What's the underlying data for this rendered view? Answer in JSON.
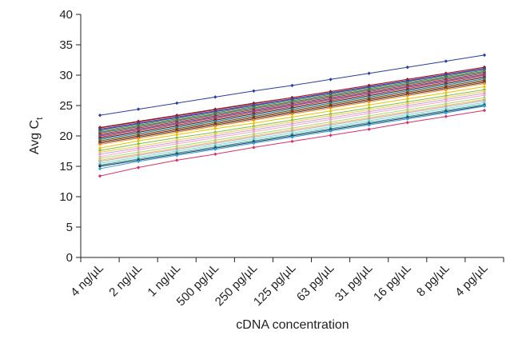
{
  "chart_data": {
    "type": "line",
    "xlabel": "cDNA concentration",
    "ylabel_main": "Avg C",
    "ylabel_sub": "t",
    "ylim": [
      0,
      40
    ],
    "y_ticks": [
      "0",
      "5",
      "10",
      "15",
      "20",
      "25",
      "30",
      "35",
      "40"
    ],
    "categories": [
      "4 ng/µL",
      "2 ng/µL",
      "1 ng/µL",
      "500 pg/µL",
      "250 pg/µL",
      "125 pg/µL",
      "63 pg/µL",
      "31 pg/µL",
      "16 pg/µL",
      "8 pg/µL",
      "4 pg/µL"
    ],
    "grid": false,
    "legend": "none",
    "series": [
      {
        "color": "#2b3f99",
        "values": [
          23.4,
          24.4,
          25.4,
          26.4,
          27.4,
          28.3,
          29.3,
          30.3,
          31.3,
          32.3,
          33.3
        ]
      },
      {
        "color": "#7b1f3a",
        "values": [
          21.4,
          22.4,
          23.4,
          24.4,
          25.4,
          26.3,
          27.3,
          28.3,
          29.3,
          30.3,
          31.3
        ]
      },
      {
        "color": "#a01a1a",
        "values": [
          21.3,
          22.3,
          23.3,
          24.3,
          25.3,
          26.3,
          27.3,
          28.3,
          29.3,
          30.3,
          31.3
        ]
      },
      {
        "color": "#6f2da8",
        "values": [
          21.1,
          22.1,
          23.1,
          24.1,
          25.1,
          26.1,
          27.1,
          28.1,
          29.1,
          30.1,
          31.1
        ]
      },
      {
        "color": "#1f4e9c",
        "values": [
          21.0,
          22.0,
          23.0,
          24.0,
          25.0,
          26.0,
          27.0,
          28.0,
          29.0,
          30.0,
          31.0
        ]
      },
      {
        "color": "#3a7d3a",
        "values": [
          20.8,
          21.8,
          22.8,
          23.8,
          24.8,
          25.8,
          26.8,
          27.8,
          28.8,
          29.8,
          30.8
        ]
      },
      {
        "color": "#8b5a2b",
        "values": [
          20.6,
          21.6,
          22.6,
          23.6,
          24.6,
          25.6,
          26.6,
          27.6,
          28.6,
          29.6,
          30.6
        ]
      },
      {
        "color": "#2f8f8f",
        "values": [
          20.5,
          21.5,
          22.5,
          23.5,
          24.5,
          25.5,
          26.5,
          27.5,
          28.5,
          29.5,
          30.5
        ]
      },
      {
        "color": "#b2182b",
        "values": [
          20.3,
          21.3,
          22.3,
          23.3,
          24.3,
          25.3,
          26.3,
          27.3,
          28.3,
          29.3,
          30.3
        ]
      },
      {
        "color": "#5a5a5a",
        "values": [
          20.1,
          21.1,
          22.1,
          23.1,
          24.1,
          25.1,
          26.1,
          27.1,
          28.1,
          29.1,
          30.1
        ]
      },
      {
        "color": "#8e44ad",
        "values": [
          20.0,
          21.0,
          22.0,
          23.0,
          24.0,
          25.0,
          26.0,
          27.0,
          28.0,
          29.0,
          30.0
        ]
      },
      {
        "color": "#c0392b",
        "values": [
          19.8,
          20.8,
          21.8,
          22.8,
          23.8,
          24.8,
          25.8,
          26.8,
          27.8,
          28.8,
          29.8
        ]
      },
      {
        "color": "#333333",
        "values": [
          19.6,
          20.6,
          21.6,
          22.6,
          23.6,
          24.6,
          25.6,
          26.6,
          27.6,
          28.6,
          29.6
        ]
      },
      {
        "color": "#2e86c1",
        "values": [
          19.4,
          20.4,
          21.4,
          22.4,
          23.4,
          24.4,
          25.4,
          26.4,
          27.4,
          28.4,
          29.4
        ]
      },
      {
        "color": "#7d6608",
        "values": [
          19.2,
          20.2,
          21.2,
          22.2,
          23.2,
          24.2,
          25.2,
          26.2,
          27.2,
          28.2,
          29.2
        ]
      },
      {
        "color": "#922b21",
        "values": [
          19.0,
          20.0,
          21.0,
          22.0,
          23.0,
          24.0,
          25.0,
          26.0,
          27.0,
          28.0,
          29.0
        ]
      },
      {
        "color": "#444444",
        "values": [
          18.8,
          19.8,
          20.8,
          21.8,
          22.8,
          23.8,
          24.8,
          25.8,
          26.8,
          27.8,
          28.8
        ]
      },
      {
        "color": "#ff8c1a",
        "values": [
          18.6,
          19.6,
          20.6,
          21.6,
          22.6,
          23.6,
          24.6,
          25.6,
          26.6,
          27.6,
          28.6
        ]
      },
      {
        "color": "#e8c400",
        "values": [
          18.0,
          19.2,
          20.2,
          21.2,
          22.1,
          23.1,
          24.1,
          25.1,
          26.1,
          27.1,
          28.1
        ]
      },
      {
        "color": "#7fbf3f",
        "values": [
          17.6,
          18.7,
          19.7,
          20.6,
          21.6,
          22.6,
          23.6,
          24.6,
          25.6,
          26.6,
          27.6
        ]
      },
      {
        "color": "#f2c94c",
        "values": [
          17.3,
          18.3,
          19.3,
          20.3,
          21.3,
          22.3,
          23.3,
          24.3,
          25.3,
          26.3,
          27.3
        ]
      },
      {
        "color": "#c9a0dc",
        "values": [
          17.0,
          18.0,
          19.0,
          20.0,
          21.0,
          22.0,
          23.0,
          24.0,
          25.0,
          26.0,
          27.0
        ]
      },
      {
        "color": "#f4a6c0",
        "values": [
          16.6,
          17.7,
          18.7,
          19.7,
          20.7,
          21.7,
          22.7,
          23.7,
          24.7,
          25.7,
          26.7
        ]
      },
      {
        "color": "#a3d977",
        "values": [
          16.3,
          17.3,
          18.3,
          19.3,
          20.3,
          21.3,
          22.3,
          23.3,
          24.3,
          25.3,
          26.3
        ]
      },
      {
        "color": "#f7b267",
        "values": [
          16.0,
          17.0,
          18.0,
          19.0,
          20.0,
          21.0,
          22.0,
          23.0,
          24.0,
          25.0,
          26.0
        ]
      },
      {
        "color": "#b0b0b0",
        "values": [
          15.8,
          16.8,
          17.8,
          18.8,
          19.8,
          20.8,
          21.8,
          22.8,
          23.8,
          24.8,
          25.8
        ]
      },
      {
        "color": "#7fd3d3",
        "values": [
          15.5,
          16.5,
          17.5,
          18.5,
          19.5,
          20.5,
          21.5,
          22.5,
          23.5,
          24.5,
          25.5
        ]
      },
      {
        "color": "#2a9d8f",
        "values": [
          15.2,
          16.2,
          17.2,
          18.2,
          19.2,
          20.2,
          21.2,
          22.2,
          23.2,
          24.2,
          25.2
        ]
      },
      {
        "color": "#1d3557",
        "values": [
          15.0,
          16.0,
          17.0,
          18.0,
          19.0,
          20.0,
          21.0,
          22.0,
          23.0,
          24.0,
          25.0
        ]
      },
      {
        "color": "#3aa0d8",
        "values": [
          14.6,
          15.8,
          16.8,
          17.8,
          18.8,
          19.8,
          20.8,
          21.8,
          22.8,
          23.8,
          24.9
        ]
      },
      {
        "color": "#d6336c",
        "values": [
          13.4,
          14.8,
          16.0,
          17.0,
          18.1,
          19.1,
          20.1,
          21.1,
          22.2,
          23.2,
          24.2
        ]
      }
    ]
  }
}
